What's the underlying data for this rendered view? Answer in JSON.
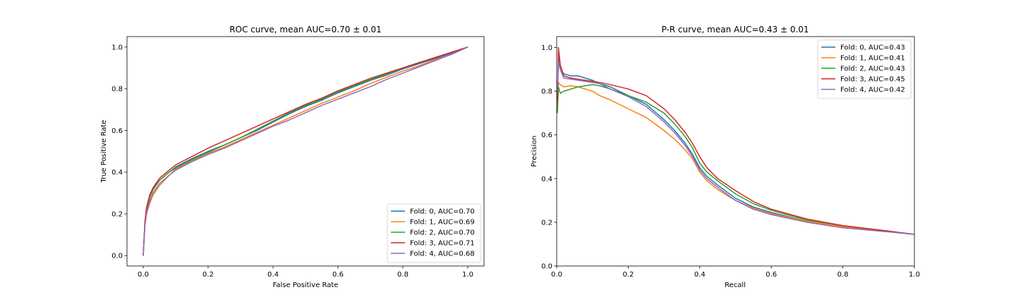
{
  "chart_data": [
    {
      "type": "line",
      "title": "ROC curve, mean AUC=0.70 ± 0.01",
      "xlabel": "False Positive Rate",
      "ylabel": "True Positive Rate",
      "xlim": [
        -0.05,
        1.05
      ],
      "ylim": [
        -0.05,
        1.05
      ],
      "xticks": [
        "0.0",
        "0.2",
        "0.4",
        "0.6",
        "0.8",
        "1.0"
      ],
      "yticks": [
        "0.0",
        "0.2",
        "0.4",
        "0.6",
        "0.8",
        "1.0"
      ],
      "grid": false,
      "legend_position": "lower-right",
      "series": [
        {
          "name": "Fold: 0, AUC=0.70",
          "color": "#1f77b4",
          "points": [
            [
              0,
              0
            ],
            [
              0.005,
              0.15
            ],
            [
              0.01,
              0.22
            ],
            [
              0.02,
              0.28
            ],
            [
              0.03,
              0.32
            ],
            [
              0.05,
              0.36
            ],
            [
              0.08,
              0.4
            ],
            [
              0.1,
              0.425
            ],
            [
              0.15,
              0.465
            ],
            [
              0.2,
              0.5
            ],
            [
              0.25,
              0.53
            ],
            [
              0.3,
              0.565
            ],
            [
              0.35,
              0.6
            ],
            [
              0.4,
              0.64
            ],
            [
              0.45,
              0.68
            ],
            [
              0.5,
              0.715
            ],
            [
              0.55,
              0.745
            ],
            [
              0.6,
              0.78
            ],
            [
              0.65,
              0.81
            ],
            [
              0.7,
              0.84
            ],
            [
              0.75,
              0.865
            ],
            [
              0.8,
              0.895
            ],
            [
              0.85,
              0.92
            ],
            [
              0.9,
              0.945
            ],
            [
              0.95,
              0.97
            ],
            [
              1,
              1
            ]
          ]
        },
        {
          "name": "Fold: 1, AUC=0.69",
          "color": "#ff7f0e",
          "points": [
            [
              0,
              0
            ],
            [
              0.005,
              0.14
            ],
            [
              0.01,
              0.2
            ],
            [
              0.02,
              0.25
            ],
            [
              0.03,
              0.29
            ],
            [
              0.05,
              0.335
            ],
            [
              0.08,
              0.385
            ],
            [
              0.1,
              0.415
            ],
            [
              0.15,
              0.455
            ],
            [
              0.2,
              0.49
            ],
            [
              0.25,
              0.52
            ],
            [
              0.3,
              0.555
            ],
            [
              0.35,
              0.59
            ],
            [
              0.4,
              0.625
            ],
            [
              0.45,
              0.66
            ],
            [
              0.5,
              0.695
            ],
            [
              0.55,
              0.73
            ],
            [
              0.6,
              0.76
            ],
            [
              0.65,
              0.79
            ],
            [
              0.7,
              0.825
            ],
            [
              0.75,
              0.855
            ],
            [
              0.8,
              0.885
            ],
            [
              0.85,
              0.91
            ],
            [
              0.9,
              0.94
            ],
            [
              0.95,
              0.965
            ],
            [
              1,
              1
            ]
          ]
        },
        {
          "name": "Fold: 2, AUC=0.70",
          "color": "#2ca02c",
          "points": [
            [
              0,
              0
            ],
            [
              0.005,
              0.15
            ],
            [
              0.01,
              0.22
            ],
            [
              0.02,
              0.28
            ],
            [
              0.03,
              0.315
            ],
            [
              0.05,
              0.36
            ],
            [
              0.08,
              0.4
            ],
            [
              0.1,
              0.42
            ],
            [
              0.15,
              0.46
            ],
            [
              0.2,
              0.495
            ],
            [
              0.25,
              0.53
            ],
            [
              0.3,
              0.565
            ],
            [
              0.35,
              0.605
            ],
            [
              0.4,
              0.645
            ],
            [
              0.45,
              0.685
            ],
            [
              0.5,
              0.72
            ],
            [
              0.55,
              0.75
            ],
            [
              0.6,
              0.785
            ],
            [
              0.65,
              0.815
            ],
            [
              0.7,
              0.845
            ],
            [
              0.75,
              0.87
            ],
            [
              0.8,
              0.9
            ],
            [
              0.85,
              0.925
            ],
            [
              0.9,
              0.95
            ],
            [
              0.95,
              0.975
            ],
            [
              1,
              1
            ]
          ]
        },
        {
          "name": "Fold: 3, AUC=0.71",
          "color": "#d62728",
          "points": [
            [
              0,
              0
            ],
            [
              0.005,
              0.16
            ],
            [
              0.01,
              0.23
            ],
            [
              0.02,
              0.29
            ],
            [
              0.03,
              0.325
            ],
            [
              0.05,
              0.37
            ],
            [
              0.08,
              0.41
            ],
            [
              0.1,
              0.435
            ],
            [
              0.15,
              0.475
            ],
            [
              0.2,
              0.515
            ],
            [
              0.25,
              0.55
            ],
            [
              0.3,
              0.585
            ],
            [
              0.35,
              0.62
            ],
            [
              0.4,
              0.655
            ],
            [
              0.45,
              0.69
            ],
            [
              0.5,
              0.725
            ],
            [
              0.55,
              0.755
            ],
            [
              0.6,
              0.79
            ],
            [
              0.65,
              0.82
            ],
            [
              0.7,
              0.85
            ],
            [
              0.75,
              0.875
            ],
            [
              0.8,
              0.9
            ],
            [
              0.85,
              0.925
            ],
            [
              0.9,
              0.95
            ],
            [
              0.95,
              0.975
            ],
            [
              1,
              1
            ]
          ]
        },
        {
          "name": "Fold: 4, AUC=0.68",
          "color": "#9467bd",
          "points": [
            [
              0,
              0
            ],
            [
              0.005,
              0.14
            ],
            [
              0.01,
              0.2
            ],
            [
              0.02,
              0.26
            ],
            [
              0.03,
              0.3
            ],
            [
              0.05,
              0.345
            ],
            [
              0.08,
              0.385
            ],
            [
              0.1,
              0.41
            ],
            [
              0.15,
              0.45
            ],
            [
              0.2,
              0.485
            ],
            [
              0.25,
              0.515
            ],
            [
              0.3,
              0.55
            ],
            [
              0.35,
              0.585
            ],
            [
              0.4,
              0.62
            ],
            [
              0.45,
              0.65
            ],
            [
              0.5,
              0.685
            ],
            [
              0.55,
              0.72
            ],
            [
              0.6,
              0.75
            ],
            [
              0.65,
              0.78
            ],
            [
              0.7,
              0.81
            ],
            [
              0.75,
              0.845
            ],
            [
              0.8,
              0.875
            ],
            [
              0.85,
              0.905
            ],
            [
              0.9,
              0.935
            ],
            [
              0.95,
              0.965
            ],
            [
              1,
              1
            ]
          ]
        }
      ]
    },
    {
      "type": "line",
      "title": "P-R curve, mean AUC=0.43 ± 0.01",
      "xlabel": "Recall",
      "ylabel": "Precision",
      "xlim": [
        0,
        1
      ],
      "ylim": [
        0,
        1.05
      ],
      "xticks": [
        "0.0",
        "0.2",
        "0.4",
        "0.6",
        "0.8",
        "1.0"
      ],
      "yticks": [
        "0.0",
        "0.2",
        "0.4",
        "0.6",
        "0.8",
        "1.0"
      ],
      "grid": false,
      "legend_position": "upper-right",
      "series": [
        {
          "name": "Fold: 0, AUC=0.43",
          "color": "#1f77b4",
          "points": [
            [
              0.002,
              0.72
            ],
            [
              0.005,
              0.98
            ],
            [
              0.01,
              0.9
            ],
            [
              0.02,
              0.88
            ],
            [
              0.04,
              0.87
            ],
            [
              0.06,
              0.87
            ],
            [
              0.08,
              0.86
            ],
            [
              0.1,
              0.85
            ],
            [
              0.12,
              0.835
            ],
            [
              0.15,
              0.82
            ],
            [
              0.2,
              0.78
            ],
            [
              0.25,
              0.74
            ],
            [
              0.3,
              0.67
            ],
            [
              0.33,
              0.62
            ],
            [
              0.36,
              0.56
            ],
            [
              0.38,
              0.51
            ],
            [
              0.4,
              0.45
            ],
            [
              0.42,
              0.41
            ],
            [
              0.45,
              0.37
            ],
            [
              0.5,
              0.31
            ],
            [
              0.55,
              0.27
            ],
            [
              0.6,
              0.245
            ],
            [
              0.7,
              0.205
            ],
            [
              0.8,
              0.18
            ],
            [
              0.9,
              0.165
            ],
            [
              1,
              0.145
            ]
          ]
        },
        {
          "name": "Fold: 1, AUC=0.41",
          "color": "#ff7f0e",
          "points": [
            [
              0.002,
              0.7
            ],
            [
              0.005,
              0.84
            ],
            [
              0.01,
              0.83
            ],
            [
              0.02,
              0.82
            ],
            [
              0.04,
              0.825
            ],
            [
              0.06,
              0.82
            ],
            [
              0.08,
              0.81
            ],
            [
              0.1,
              0.8
            ],
            [
              0.12,
              0.78
            ],
            [
              0.15,
              0.76
            ],
            [
              0.2,
              0.72
            ],
            [
              0.25,
              0.68
            ],
            [
              0.3,
              0.62
            ],
            [
              0.33,
              0.58
            ],
            [
              0.36,
              0.53
            ],
            [
              0.38,
              0.49
            ],
            [
              0.4,
              0.43
            ],
            [
              0.42,
              0.39
            ],
            [
              0.45,
              0.35
            ],
            [
              0.5,
              0.3
            ],
            [
              0.55,
              0.265
            ],
            [
              0.6,
              0.24
            ],
            [
              0.7,
              0.205
            ],
            [
              0.8,
              0.18
            ],
            [
              0.9,
              0.165
            ],
            [
              1,
              0.145
            ]
          ]
        },
        {
          "name": "Fold: 2, AUC=0.43",
          "color": "#2ca02c",
          "points": [
            [
              0.002,
              0.7
            ],
            [
              0.005,
              0.82
            ],
            [
              0.01,
              0.79
            ],
            [
              0.02,
              0.8
            ],
            [
              0.04,
              0.81
            ],
            [
              0.06,
              0.82
            ],
            [
              0.08,
              0.825
            ],
            [
              0.1,
              0.83
            ],
            [
              0.12,
              0.825
            ],
            [
              0.15,
              0.81
            ],
            [
              0.2,
              0.78
            ],
            [
              0.25,
              0.75
            ],
            [
              0.3,
              0.7
            ],
            [
              0.33,
              0.65
            ],
            [
              0.36,
              0.59
            ],
            [
              0.38,
              0.54
            ],
            [
              0.4,
              0.47
            ],
            [
              0.42,
              0.43
            ],
            [
              0.45,
              0.39
            ],
            [
              0.5,
              0.33
            ],
            [
              0.55,
              0.285
            ],
            [
              0.6,
              0.255
            ],
            [
              0.7,
              0.21
            ],
            [
              0.8,
              0.185
            ],
            [
              0.9,
              0.165
            ],
            [
              1,
              0.145
            ]
          ]
        },
        {
          "name": "Fold: 3, AUC=0.45",
          "color": "#d62728",
          "points": [
            [
              0.002,
              0.75
            ],
            [
              0.005,
              1.0
            ],
            [
              0.01,
              0.92
            ],
            [
              0.02,
              0.87
            ],
            [
              0.04,
              0.86
            ],
            [
              0.06,
              0.855
            ],
            [
              0.08,
              0.85
            ],
            [
              0.1,
              0.845
            ],
            [
              0.12,
              0.84
            ],
            [
              0.15,
              0.83
            ],
            [
              0.2,
              0.81
            ],
            [
              0.25,
              0.78
            ],
            [
              0.3,
              0.72
            ],
            [
              0.33,
              0.67
            ],
            [
              0.36,
              0.61
            ],
            [
              0.38,
              0.56
            ],
            [
              0.4,
              0.5
            ],
            [
              0.42,
              0.45
            ],
            [
              0.45,
              0.4
            ],
            [
              0.5,
              0.345
            ],
            [
              0.55,
              0.295
            ],
            [
              0.6,
              0.26
            ],
            [
              0.7,
              0.215
            ],
            [
              0.8,
              0.185
            ],
            [
              0.9,
              0.165
            ],
            [
              1,
              0.145
            ]
          ]
        },
        {
          "name": "Fold: 4, AUC=0.42",
          "color": "#9467bd",
          "points": [
            [
              0.002,
              0.8
            ],
            [
              0.005,
              0.93
            ],
            [
              0.01,
              0.9
            ],
            [
              0.02,
              0.86
            ],
            [
              0.04,
              0.855
            ],
            [
              0.06,
              0.85
            ],
            [
              0.08,
              0.845
            ],
            [
              0.1,
              0.84
            ],
            [
              0.12,
              0.835
            ],
            [
              0.15,
              0.81
            ],
            [
              0.2,
              0.775
            ],
            [
              0.25,
              0.73
            ],
            [
              0.3,
              0.66
            ],
            [
              0.33,
              0.61
            ],
            [
              0.36,
              0.55
            ],
            [
              0.38,
              0.5
            ],
            [
              0.4,
              0.44
            ],
            [
              0.42,
              0.4
            ],
            [
              0.45,
              0.36
            ],
            [
              0.5,
              0.3
            ],
            [
              0.55,
              0.26
            ],
            [
              0.6,
              0.235
            ],
            [
              0.7,
              0.2
            ],
            [
              0.8,
              0.175
            ],
            [
              0.9,
              0.16
            ],
            [
              1,
              0.145
            ]
          ]
        }
      ]
    }
  ]
}
